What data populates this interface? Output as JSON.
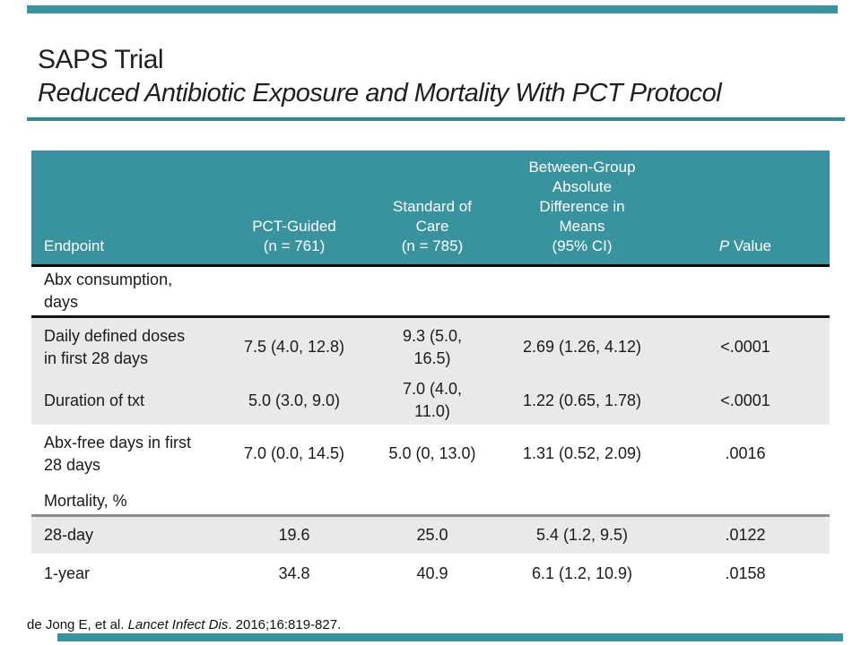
{
  "slide": {
    "title": "SAPS Trial",
    "subtitle": "Reduced Antibiotic Exposure and Mortality With PCT Protocol",
    "accent_color": "#38939F"
  },
  "table": {
    "header": {
      "endpoint": "Endpoint",
      "pct_guided": "PCT-Guided\n(n = 761)",
      "standard_of_care": "Standard of\nCare\n(n = 785)",
      "difference": "Between-Group\nAbsolute\nDifference in\nMeans\n(95% CI)",
      "p_value_italic": "P",
      "p_value_rest": " Value"
    },
    "rows": [
      {
        "type": "section",
        "endpoint": "Abx consumption,\ndays",
        "cells": [
          "",
          "",
          "",
          ""
        ]
      },
      {
        "type": "data",
        "endpoint": "Daily defined doses\nin first 28 days",
        "cells": [
          "7.5 (4.0, 12.8)",
          "9.3 (5.0,\n16.5)",
          "2.69 (1.26, 4.12)",
          "<.0001"
        ]
      },
      {
        "type": "data",
        "endpoint": "Duration of txt",
        "cells": [
          "5.0 (3.0, 9.0)",
          "7.0 (4.0,\n11.0)",
          "1.22 (0.65, 1.78)",
          "<.0001"
        ]
      },
      {
        "type": "data",
        "endpoint": "Abx-free days in first\n28 days",
        "cells": [
          "7.0 (0.0, 14.5)",
          "5.0 (0, 13.0)",
          "1.31 (0.52, 2.09)",
          ".0016"
        ]
      },
      {
        "type": "section",
        "endpoint": "Mortality, %",
        "cells": [
          "",
          "",
          "",
          ""
        ]
      },
      {
        "type": "data",
        "endpoint": "28-day",
        "cells": [
          "19.6",
          "25.0",
          "5.4 (1.2, 9.5)",
          ".0122"
        ]
      },
      {
        "type": "data",
        "endpoint": "1-year",
        "cells": [
          "34.8",
          "40.9",
          "6.1 (1.2, 10.9)",
          ".0158"
        ]
      }
    ]
  },
  "footer": {
    "citation_prefix": "de Jong E, et al. ",
    "citation_journal": "Lancet Infect Dis",
    "citation_suffix": ". 2016;16:819-827."
  }
}
